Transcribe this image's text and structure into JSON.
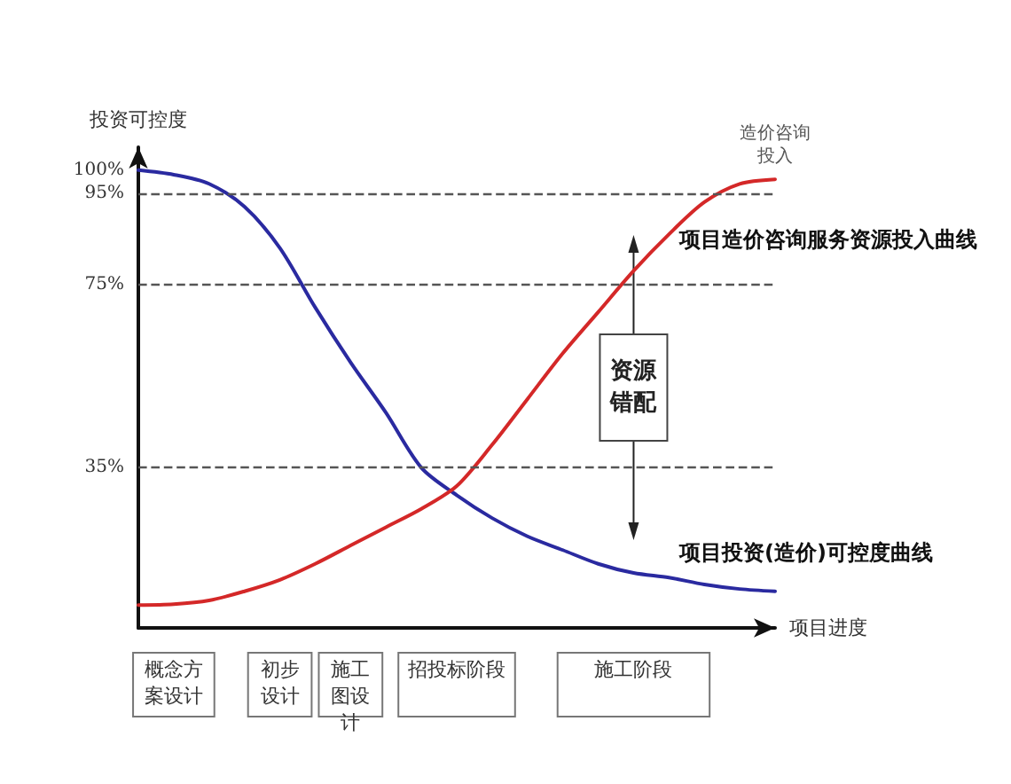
{
  "chart_data": {
    "type": "line",
    "xlabel": "项目进度",
    "ylabel": "投资可控度",
    "ylim": [
      0,
      105
    ],
    "categories": [
      null,
      "概念方案设计",
      null,
      null,
      "初步设计",
      null,
      "施工图设计",
      null,
      null,
      "招投标阶段",
      null,
      null,
      null,
      null,
      "施工阶段",
      null,
      null,
      null,
      null
    ],
    "yticks": [
      {
        "value": 35,
        "label": "35%"
      },
      {
        "value": 75,
        "label": "75%"
      },
      {
        "value": 95,
        "label": "95%"
      },
      {
        "value": 100,
        "label": "100%"
      }
    ],
    "grid": false,
    "legend": false,
    "marker": "none",
    "line_style": "solid",
    "series": [
      {
        "name": "项目投资(造价)可控度曲线",
        "color": "#2a2aa0",
        "values": [
          100,
          99,
          97,
          92,
          83,
          70,
          58,
          47,
          35,
          29,
          24,
          20,
          17,
          14,
          12,
          11,
          9.5,
          8.5,
          8
        ]
      },
      {
        "name": "项目造价咨询服务资源投入曲线",
        "color": "#d42828",
        "values": [
          5,
          5.2,
          6,
          8,
          10.5,
          14,
          18,
          22,
          26,
          31,
          40,
          50,
          60,
          69,
          78,
          86,
          93,
          97,
          98
        ]
      }
    ],
    "ref_lines": [
      {
        "axis": "y",
        "value": 95,
        "color": "#555555",
        "line_style": "dashed"
      },
      {
        "axis": "y",
        "value": 75,
        "color": "#555555",
        "line_style": "dashed"
      },
      {
        "axis": "y",
        "value": 35,
        "color": "#555555",
        "line_style": "dashed"
      }
    ],
    "annotations": [
      "造价咨询投入",
      "资源错配"
    ]
  }
}
